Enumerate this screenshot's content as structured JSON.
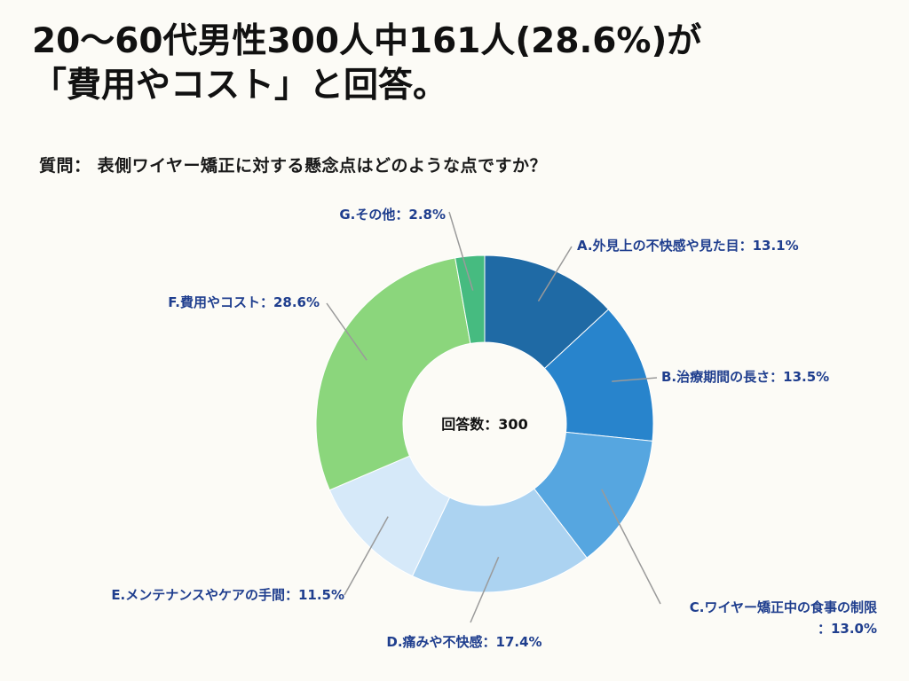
{
  "headline": {
    "line1": "20〜60代男性300人中161人(28.6%)が",
    "line2": "「費用やコスト」と回答。"
  },
  "question": "質問：  表側ワイヤー矯正に対する懸念点はどのような点ですか？",
  "chart_data": {
    "type": "pie",
    "donut": true,
    "center_label": "回答数：300",
    "total_responses": 300,
    "slices": [
      {
        "label": "A.外見上の不快感や見た目",
        "value": 13.1,
        "color": "#1f6aa5",
        "label_lines": [
          "A.外見上の不快感や見た目：13.1%"
        ]
      },
      {
        "label": "B.治療期間の長さ",
        "value": 13.5,
        "color": "#2884cc",
        "label_lines": [
          "B.治療期間の長さ：13.5%"
        ]
      },
      {
        "label": "C.ワイヤー矯正中の食事の制限",
        "value": 13.0,
        "color": "#56a6e0",
        "label_lines": [
          "C.ワイヤー矯正中の食事の制限",
          "：13.0%"
        ]
      },
      {
        "label": "D.痛みや不快感",
        "value": 17.4,
        "color": "#acd3f1",
        "label_lines": [
          "D.痛みや不快感：17.4%"
        ]
      },
      {
        "label": "E.メンテナンスやケアの手間",
        "value": 11.5,
        "color": "#d6e9f9",
        "label_lines": [
          "E.メンテナンスやケアの手間：11.5%"
        ]
      },
      {
        "label": "F.費用やコスト",
        "value": 28.6,
        "color": "#8bd67c",
        "label_lines": [
          "F.費用やコスト：28.6%"
        ]
      },
      {
        "label": "G.その他",
        "value": 2.8,
        "color": "#46bb80",
        "label_lines": [
          "G.その他：2.8%"
        ]
      }
    ],
    "legend": "none"
  }
}
